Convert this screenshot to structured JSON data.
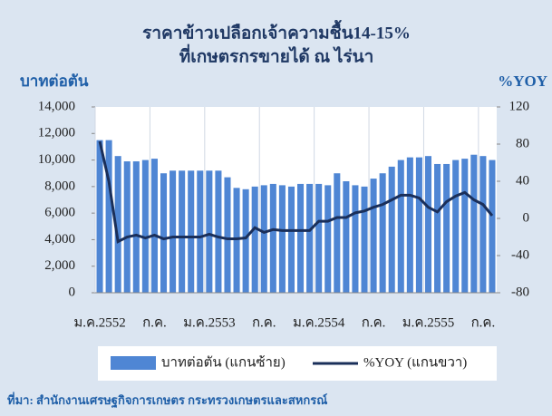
{
  "chart_data": {
    "type": "bar_line",
    "title": "ราคาข้าวเปลือกเจ้าความชื้น14-15%",
    "subtitle": "ที่เกษตรกรขายได้ ณ ไร่นา",
    "y_label": "บาทต่อตัน",
    "y2_label": "%YOY",
    "source": "ที่มา: สำนักงานเศรษฐกิจการเกษตร กระทรวงเกษตรและสหกรณ์",
    "categories": [
      "ม.ค.2552",
      null,
      null,
      null,
      null,
      null,
      "ก.ค.",
      null,
      null,
      null,
      null,
      null,
      "ม.ค.2553",
      null,
      null,
      null,
      null,
      null,
      "ก.ค.",
      null,
      null,
      null,
      null,
      null,
      "ม.ค.2554",
      null,
      null,
      null,
      null,
      null,
      "ก.ค.",
      null,
      null,
      null,
      null,
      null,
      "ม.ค.2555",
      null,
      null,
      null,
      null,
      null,
      "ก.ค.",
      null
    ],
    "series": [
      {
        "name": "บาทต่อตัน (แกนซ้าย)",
        "type": "bar",
        "color": "#4f86d4",
        "values": [
          11500,
          11500,
          10300,
          9900,
          9900,
          10000,
          10100,
          9000,
          9200,
          9200,
          9200,
          9200,
          9200,
          9200,
          8700,
          7900,
          7800,
          8000,
          8100,
          8200,
          8100,
          8000,
          8200,
          8200,
          8200,
          8100,
          9000,
          8400,
          8100,
          8000,
          8600,
          9000,
          9500,
          10000,
          10200,
          10200,
          10300,
          9700,
          9700,
          10000,
          10100,
          10400,
          10300,
          10000
        ]
      },
      {
        "name": "%YOY (แกนขวา)",
        "type": "line",
        "axis": "y2",
        "color": "#1a2f5a",
        "values": [
          83,
          40,
          -25,
          -20,
          -18,
          -21,
          -18,
          -22,
          -20,
          -20,
          -20,
          -20,
          -17,
          -20,
          -22,
          -22,
          -21,
          -10,
          -15,
          -12,
          -13,
          -13,
          -13,
          -13,
          -3,
          -3,
          1,
          1,
          6,
          8,
          12,
          15,
          20,
          25,
          25,
          22,
          12,
          7,
          18,
          24,
          28,
          20,
          15,
          3
        ]
      }
    ],
    "ylim": [
      0,
      14000
    ],
    "yticks": [
      0,
      {
        "value": 2000,
        "label": "2,000"
      },
      {
        "value": 4000,
        "label": "4,000"
      },
      {
        "value": 6000,
        "label": "6,000"
      },
      {
        "value": 8000,
        "label": "8,000"
      },
      {
        "value": 10000,
        "label": "10,000"
      },
      {
        "value": 12000,
        "label": "12,000"
      },
      {
        "value": 14000,
        "label": "14,000"
      }
    ],
    "y2lim": [
      -80,
      120
    ],
    "y2ticks": [
      -80,
      -40,
      0,
      40,
      80,
      120
    ],
    "legend": "bottom"
  }
}
